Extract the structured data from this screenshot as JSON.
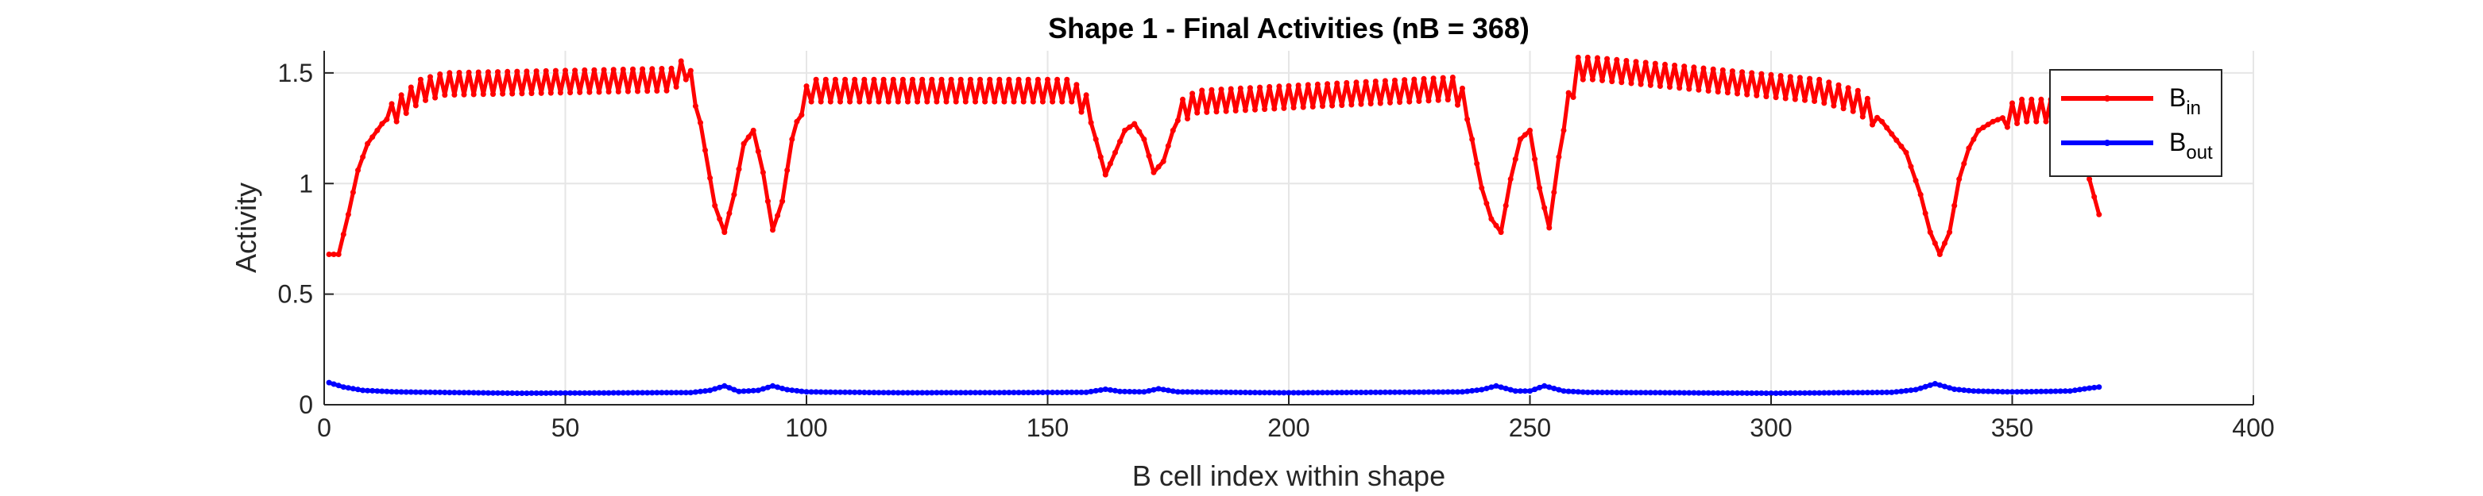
{
  "colors": {
    "series_in": "#ff0000",
    "series_out": "#0000ff",
    "grid": "#e6e6e6",
    "axis": "#262626"
  },
  "chart_data": {
    "type": "line",
    "title": "Shape 1 - Final Activities (nB = 368)",
    "xlabel": "B cell index within shape",
    "ylabel": "Activity",
    "xlim": [
      0,
      400
    ],
    "ylim": [
      0,
      1.6
    ],
    "xticks": [
      0,
      50,
      100,
      150,
      200,
      250,
      300,
      350,
      400
    ],
    "yticks": [
      0,
      0.5,
      1,
      1.5
    ],
    "ytick_labels": [
      "0",
      "0.5",
      "1",
      "1.5"
    ],
    "grid": true,
    "legend_position": "top-right",
    "n_points": 368,
    "series": [
      {
        "name": "B_in",
        "legend_main": "B",
        "legend_sub": "in",
        "color": "#ff0000",
        "marker": "dot",
        "keypoints": [
          [
            1,
            0.68
          ],
          [
            3,
            0.68
          ],
          [
            5,
            0.86
          ],
          [
            7,
            1.06
          ],
          [
            9,
            1.18
          ],
          [
            12,
            1.27
          ],
          [
            16,
            1.35
          ],
          [
            20,
            1.42
          ],
          [
            25,
            1.45
          ],
          [
            72,
            1.47
          ],
          [
            75,
            1.52
          ],
          [
            77,
            1.4
          ],
          [
            79,
            1.15
          ],
          [
            81,
            0.9
          ],
          [
            83,
            0.78
          ],
          [
            85,
            0.95
          ],
          [
            87,
            1.18
          ],
          [
            89,
            1.24
          ],
          [
            91,
            1.05
          ],
          [
            93,
            0.79
          ],
          [
            95,
            0.92
          ],
          [
            97,
            1.2
          ],
          [
            99,
            1.36
          ],
          [
            101,
            1.42
          ],
          [
            155,
            1.42
          ],
          [
            158,
            1.35
          ],
          [
            160,
            1.2
          ],
          [
            162,
            1.04
          ],
          [
            164,
            1.14
          ],
          [
            166,
            1.24
          ],
          [
            168,
            1.27
          ],
          [
            170,
            1.2
          ],
          [
            172,
            1.05
          ],
          [
            174,
            1.1
          ],
          [
            176,
            1.24
          ],
          [
            178,
            1.33
          ],
          [
            181,
            1.37
          ],
          [
            234,
            1.43
          ],
          [
            236,
            1.38
          ],
          [
            238,
            1.2
          ],
          [
            240,
            0.98
          ],
          [
            242,
            0.84
          ],
          [
            244,
            0.78
          ],
          [
            246,
            1.02
          ],
          [
            248,
            1.2
          ],
          [
            250,
            1.24
          ],
          [
            252,
            0.98
          ],
          [
            254,
            0.8
          ],
          [
            256,
            1.12
          ],
          [
            258,
            1.36
          ],
          [
            260,
            1.52
          ],
          [
            263,
            1.52
          ],
          [
            310,
            1.42
          ],
          [
            318,
            1.37
          ],
          [
            323,
            1.28
          ],
          [
            328,
            1.14
          ],
          [
            331,
            0.95
          ],
          [
            333,
            0.78
          ],
          [
            335,
            0.68
          ],
          [
            337,
            0.78
          ],
          [
            339,
            1.02
          ],
          [
            341,
            1.16
          ],
          [
            343,
            1.24
          ],
          [
            346,
            1.28
          ],
          [
            352,
            1.33
          ],
          [
            358,
            1.33
          ],
          [
            362,
            1.28
          ],
          [
            364,
            1.22
          ],
          [
            366,
            1.02
          ],
          [
            368,
            0.86
          ]
        ],
        "oscillation": {
          "amplitude": 0.05,
          "period": 2
        }
      },
      {
        "name": "B_out",
        "legend_main": "B",
        "legend_sub": "out",
        "color": "#0000ff",
        "marker": "dot",
        "keypoints": [
          [
            1,
            0.1
          ],
          [
            4,
            0.08
          ],
          [
            8,
            0.065
          ],
          [
            15,
            0.058
          ],
          [
            40,
            0.052
          ],
          [
            76,
            0.055
          ],
          [
            80,
            0.065
          ],
          [
            83,
            0.085
          ],
          [
            86,
            0.06
          ],
          [
            90,
            0.065
          ],
          [
            93,
            0.085
          ],
          [
            96,
            0.068
          ],
          [
            100,
            0.058
          ],
          [
            120,
            0.054
          ],
          [
            158,
            0.056
          ],
          [
            162,
            0.07
          ],
          [
            165,
            0.06
          ],
          [
            170,
            0.058
          ],
          [
            173,
            0.072
          ],
          [
            177,
            0.058
          ],
          [
            200,
            0.054
          ],
          [
            236,
            0.058
          ],
          [
            240,
            0.068
          ],
          [
            243,
            0.085
          ],
          [
            247,
            0.062
          ],
          [
            250,
            0.062
          ],
          [
            253,
            0.085
          ],
          [
            257,
            0.062
          ],
          [
            262,
            0.056
          ],
          [
            300,
            0.052
          ],
          [
            325,
            0.056
          ],
          [
            330,
            0.068
          ],
          [
            334,
            0.095
          ],
          [
            338,
            0.07
          ],
          [
            342,
            0.062
          ],
          [
            350,
            0.058
          ],
          [
            362,
            0.062
          ],
          [
            366,
            0.075
          ],
          [
            368,
            0.08
          ]
        ],
        "oscillation": {
          "amplitude": 0.0,
          "period": 2
        }
      }
    ]
  }
}
